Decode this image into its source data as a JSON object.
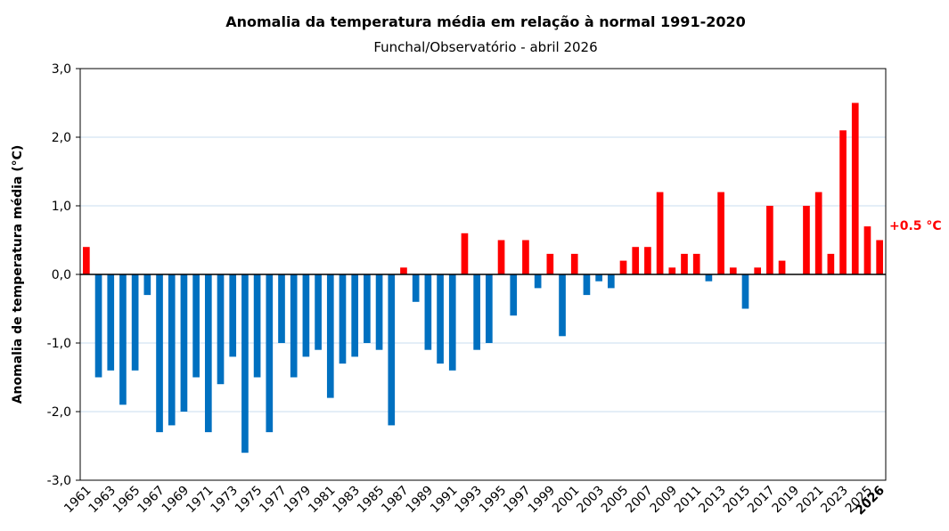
{
  "chart_data": {
    "type": "bar",
    "title": "Anomalia da temperatura média em relação à normal 1991-2020",
    "subtitle": "Funchal/Observatório - abril 2026",
    "y_label": "Anomalia de temperatura média (°C)",
    "annotation": "+0.5  °C",
    "categories": [
      "1961",
      null,
      "1963",
      null,
      "1965",
      null,
      "1967",
      null,
      "1969",
      null,
      "1971",
      null,
      "1973",
      null,
      "1975",
      null,
      "1977",
      null,
      "1979",
      null,
      "1981",
      null,
      "1983",
      null,
      "1985",
      null,
      "1987",
      null,
      "1989",
      null,
      "1991",
      null,
      "1993",
      null,
      "1995",
      null,
      "1997",
      null,
      "1999",
      null,
      "2001",
      null,
      "2003",
      null,
      "2005",
      null,
      "2007",
      null,
      "2009",
      null,
      "2011",
      null,
      "2013",
      null,
      "2015",
      null,
      "2017",
      null,
      "2019",
      null,
      "2021",
      null,
      "2023",
      null,
      "2025",
      "2026"
    ],
    "values": [
      0.4,
      -1.5,
      -1.4,
      -1.9,
      -1.4,
      -0.3,
      -2.3,
      -2.2,
      -2.0,
      -1.5,
      -2.3,
      -1.6,
      -1.2,
      -2.6,
      -1.5,
      -2.3,
      -1.0,
      -1.5,
      -1.2,
      -1.1,
      -1.8,
      -1.3,
      -1.2,
      -1.0,
      -1.1,
      -2.2,
      0.1,
      -0.4,
      -1.1,
      -1.3,
      -1.4,
      0.6,
      -1.1,
      -1.0,
      0.5,
      -0.6,
      0.5,
      -0.2,
      0.3,
      -0.9,
      0.3,
      -0.3,
      -0.1,
      -0.2,
      0.2,
      0.4,
      0.4,
      1.2,
      0.1,
      0.3,
      0.3,
      -0.1,
      1.2,
      0.1,
      -0.5,
      0.1,
      1.0,
      0.2,
      0.0,
      1.0,
      1.2,
      0.3,
      2.1,
      2.5,
      0.7,
      0.5
    ],
    "color_positive": "#ff0000",
    "color_negative": "#0070c0",
    "ylim": [
      -3,
      3
    ],
    "yticks": [
      {
        "value": -3,
        "label": "-3,0"
      },
      {
        "value": -2,
        "label": "-2,0"
      },
      {
        "value": -1,
        "label": "-1,0"
      },
      {
        "value": 0,
        "label": "0,0"
      },
      {
        "value": 1,
        "label": "1,0"
      },
      {
        "value": 2,
        "label": "2,0"
      },
      {
        "value": 3,
        "label": "3,0"
      }
    ],
    "grid": true
  }
}
